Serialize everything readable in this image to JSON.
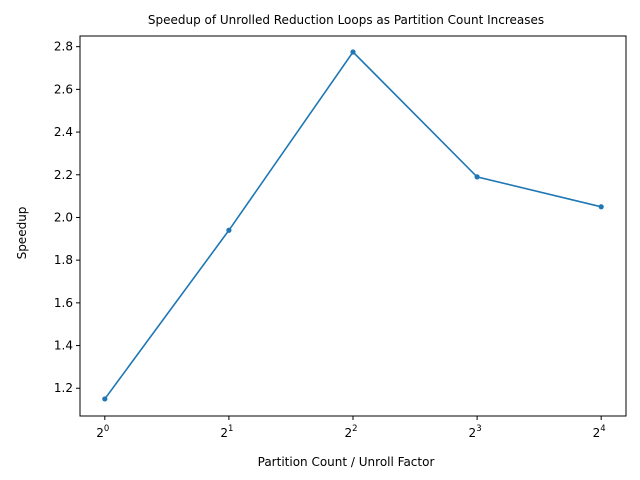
{
  "chart_data": {
    "type": "line",
    "title": "Speedup of Unrolled Reduction Loops as Partition Count Increases",
    "xlabel": "Partition Count / Unroll Factor",
    "ylabel": "Speedup",
    "x_scale": "log2",
    "x": [
      1,
      2,
      4,
      8,
      16
    ],
    "x_tick_labels": [
      {
        "base": "2",
        "exp": "0"
      },
      {
        "base": "2",
        "exp": "1"
      },
      {
        "base": "2",
        "exp": "2"
      },
      {
        "base": "2",
        "exp": "3"
      },
      {
        "base": "2",
        "exp": "4"
      }
    ],
    "y_ticks": [
      "1.2",
      "1.4",
      "1.6",
      "1.8",
      "2.0",
      "2.2",
      "2.4",
      "2.6",
      "2.8"
    ],
    "ylim": [
      1.07,
      2.85
    ],
    "grid": false,
    "series": [
      {
        "values": [
          1.15,
          1.94,
          2.775,
          2.19,
          2.05
        ],
        "color": "#1f77b4",
        "marker": "dot"
      }
    ]
  }
}
